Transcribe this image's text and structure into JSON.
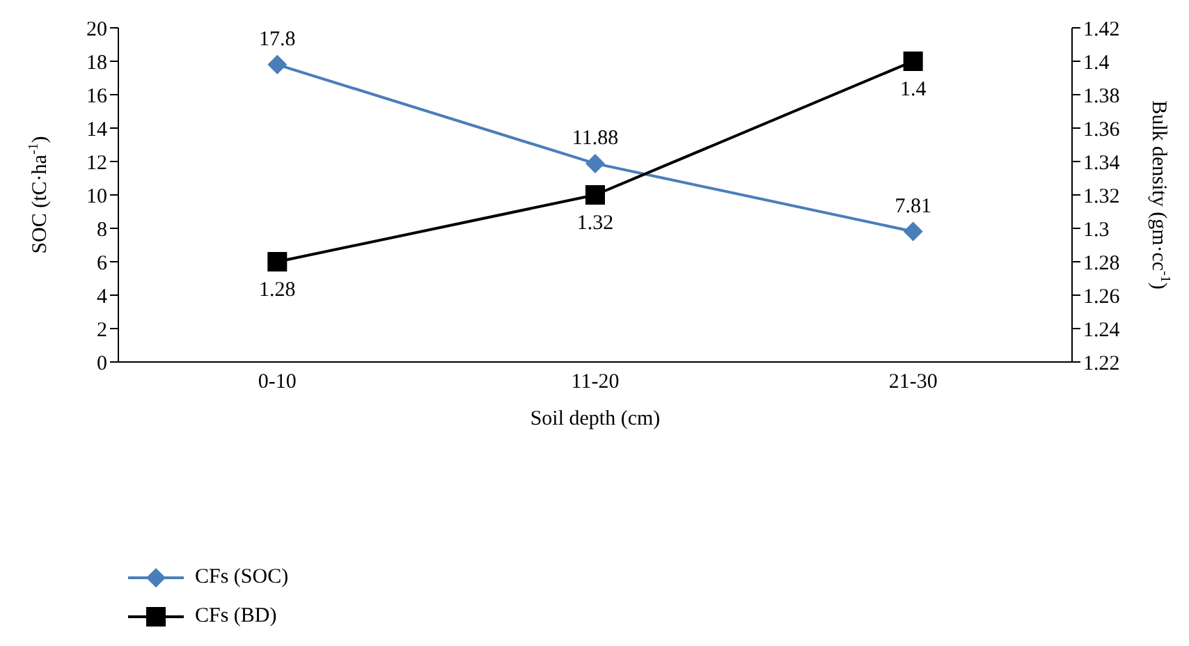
{
  "chart_data": {
    "type": "line",
    "categories": [
      "0-10",
      "11-20",
      "21-30"
    ],
    "xlabel": "Soil depth (cm)",
    "ylabel": "SOC (tC·ha$^{-1}$)",
    "y2label": "Bulk density (gm·cc$^{-1}$)",
    "ylim": [
      0,
      20
    ],
    "yticks": [
      0,
      2,
      4,
      6,
      8,
      10,
      12,
      14,
      16,
      18,
      20
    ],
    "y2lim": [
      1.22,
      1.42
    ],
    "y2ticks": [
      1.22,
      1.24,
      1.26,
      1.28,
      1.3,
      1.32,
      1.34,
      1.36,
      1.38,
      1.4,
      1.42
    ],
    "series": [
      {
        "name": "CFs (SOC)",
        "color": "#4a7ebb",
        "values": [
          17.8,
          11.88,
          7.81
        ],
        "marker": "diamond"
      },
      {
        "name": "CFs (BD)",
        "color": "#000000",
        "values": [
          1.28,
          1.32,
          1.4
        ],
        "axis": "y2",
        "marker": "square"
      }
    ],
    "data_labels": true,
    "legend": "bottom left",
    "line_style": "solid"
  }
}
